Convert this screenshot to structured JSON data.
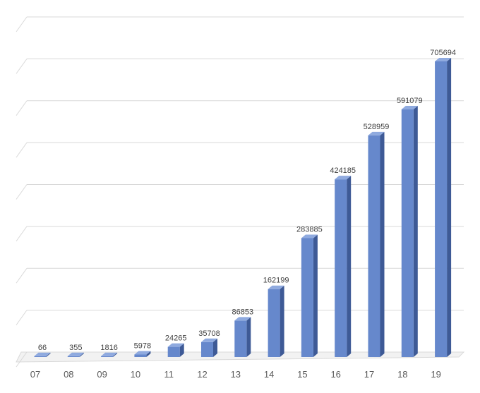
{
  "chart_data": {
    "type": "bar",
    "categories": [
      "07",
      "08",
      "09",
      "10",
      "11",
      "12",
      "13",
      "14",
      "15",
      "16",
      "17",
      "18",
      "19"
    ],
    "values": [
      66,
      355,
      1816,
      5978,
      24265,
      35708,
      86853,
      162199,
      283885,
      424185,
      528959,
      591079,
      705694
    ],
    "ylim": [
      0,
      800000
    ],
    "grid": true,
    "legend": "none",
    "style": "3d-column",
    "colors": {
      "bar_front": "#6688cc",
      "bar_side": "#3e5a96",
      "bar_top": "#8faadf",
      "grid": "#d9d9d9"
    }
  }
}
